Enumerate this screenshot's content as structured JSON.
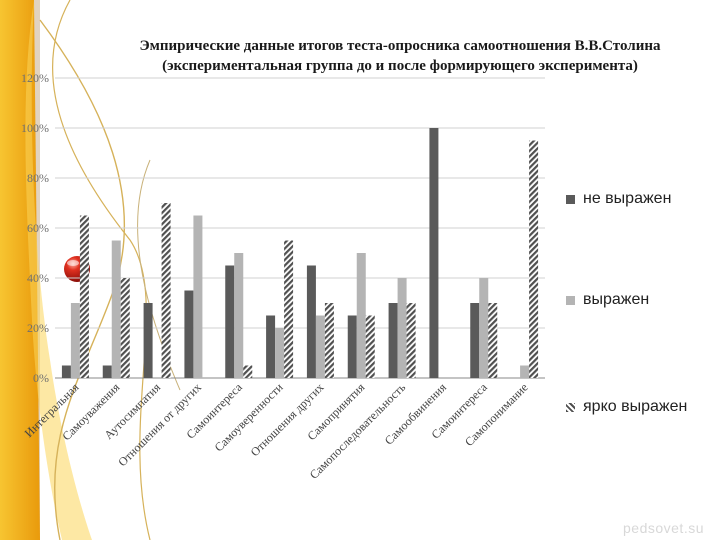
{
  "title_line1": "Эмпирические данные  итогов теста-опросника самоотношения В.В.Столина",
  "title_line2": "(экспериментальная группа  до и после формирующего эксперимента)",
  "watermark": "pedsovet.su",
  "colors": {
    "series1": "#5a5a5a",
    "series2": "#b4b4b4",
    "series3_hatch": "#505050",
    "grid": "#d0d0d0",
    "axis_text": "#6f6f6f",
    "background_accent": "#f2b21b",
    "bullet": "#d72a1e"
  },
  "chart_data": {
    "type": "bar",
    "ylim": [
      0,
      120
    ],
    "ytick_labels": [
      "0%",
      "20%",
      "40%",
      "60%",
      "80%",
      "100%",
      "120%"
    ],
    "grid": true,
    "legend_position": "right",
    "categories": [
      "Интегральная",
      "Самоуважения",
      "Аутосимпатия",
      "Отношения от других",
      "Самоинтереса",
      "Самоуверенности",
      "Отношения других",
      "Самопринятия",
      "Самопоследовательность",
      "Самообвинения",
      "Самоинтереса",
      "Самопонимание"
    ],
    "series": [
      {
        "name": "не выражен",
        "values": [
          5,
          5,
          30,
          35,
          45,
          25,
          45,
          25,
          30,
          100,
          30,
          0
        ]
      },
      {
        "name": "выражен",
        "values": [
          30,
          55,
          0,
          65,
          50,
          20,
          25,
          50,
          40,
          0,
          40,
          5
        ]
      },
      {
        "name": "ярко выражен",
        "values": [
          65,
          40,
          70,
          0,
          5,
          55,
          30,
          25,
          30,
          0,
          30,
          95
        ]
      }
    ]
  }
}
